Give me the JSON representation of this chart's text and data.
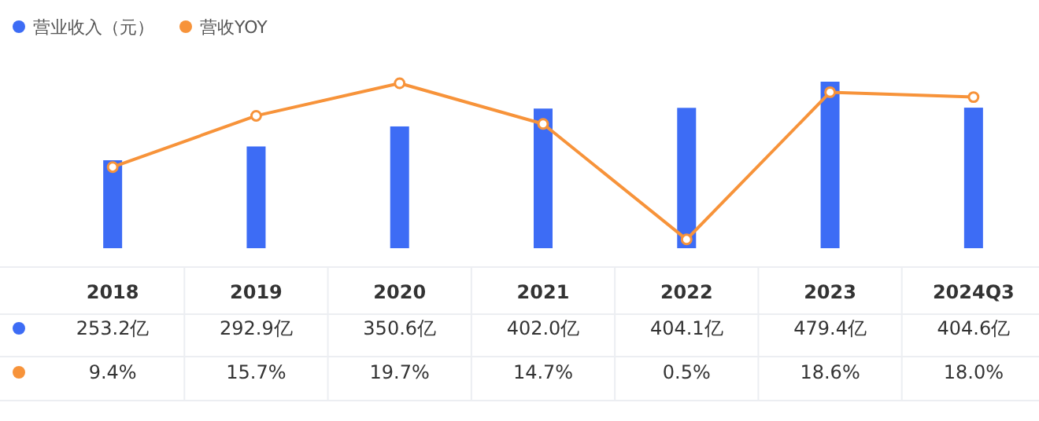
{
  "chart_data": {
    "type": "bar",
    "categories": [
      "2018",
      "2019",
      "2020",
      "2021",
      "2022",
      "2023",
      "2024Q3"
    ],
    "legend": "top left",
    "marker": "circle",
    "series": [
      {
        "name": "营业收入（元）",
        "color": "#3d6cf5",
        "values": [
          253.2,
          292.9,
          350.6,
          402.0,
          404.1,
          479.4,
          404.6
        ],
        "value_labels": [
          "253.2亿",
          "292.9亿",
          "350.6亿",
          "402.0亿",
          "404.1亿",
          "479.4亿",
          "404.6亿"
        ]
      },
      {
        "name": "营收YOY",
        "type": "line",
        "axis": "y2",
        "color": "#f7933a",
        "values": [
          9.4,
          15.7,
          19.7,
          14.7,
          0.5,
          18.6,
          18.0
        ],
        "value_labels": [
          "9.4%",
          "15.7%",
          "19.7%",
          "14.7%",
          "0.5%",
          "18.6%",
          "18.0%"
        ]
      }
    ]
  }
}
